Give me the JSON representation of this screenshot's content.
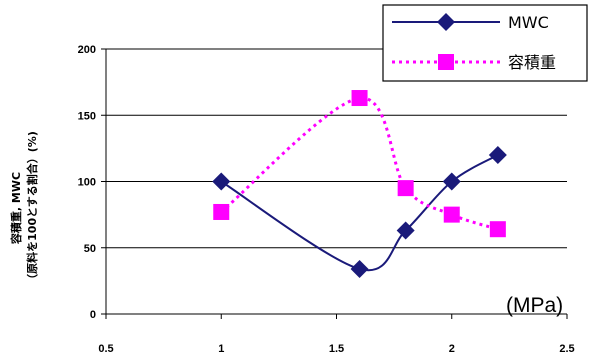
{
  "chart_data": {
    "type": "line",
    "x_unit_label": "(MPa)",
    "ylabel_line1": "容積重, MWC",
    "ylabel_line2": "（原料を100とする割合）(%)",
    "xlim": [
      0.5,
      2.5
    ],
    "ylim": [
      0,
      200
    ],
    "x_ticks": [
      0.5,
      1,
      1.5,
      2,
      2.5
    ],
    "y_ticks": [
      0,
      50,
      100,
      150,
      200
    ],
    "grid": "horizontal",
    "legend_position": "top-right",
    "series": [
      {
        "name": "MWC",
        "color": "#1a1a7a",
        "marker": "diamond",
        "line_style": "solid",
        "x": [
          1.0,
          1.6,
          1.8,
          2.0,
          2.2
        ],
        "y": [
          100,
          34,
          63,
          100,
          120
        ]
      },
      {
        "name": "容積重",
        "color": "#ff00ff",
        "marker": "square",
        "line_style": "dotted",
        "x": [
          1.0,
          1.6,
          1.8,
          2.0,
          2.2
        ],
        "y": [
          77,
          163,
          95,
          75,
          64
        ]
      }
    ]
  }
}
